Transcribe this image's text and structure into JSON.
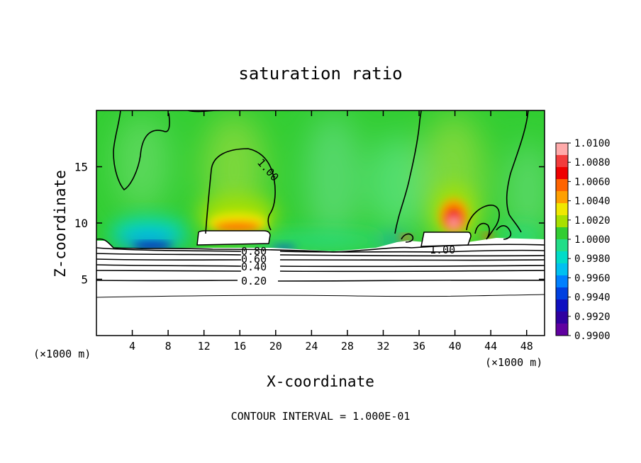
{
  "chart_data": {
    "type": "heatmap",
    "title": "saturation ratio",
    "xlabel": "X-coordinate",
    "ylabel": "Z-coordinate",
    "x_units_left": "(×1000 m)",
    "x_units_right": "(×1000 m)",
    "xlim": [
      0,
      50
    ],
    "ylim": [
      0,
      20
    ],
    "xticks": [
      4,
      8,
      12,
      16,
      20,
      24,
      28,
      32,
      36,
      40,
      44,
      48
    ],
    "yticks": [
      5,
      10,
      15
    ],
    "footer": "CONTOUR INTERVAL = 1.000E-01",
    "colorbar": {
      "ticks": [
        "1.0100",
        "1.0080",
        "1.0060",
        "1.0040",
        "1.0020",
        "1.0000",
        "0.9980",
        "0.9960",
        "0.9940",
        "0.9920",
        "0.9900"
      ],
      "colors": [
        "#ffaaaa",
        "#f23c3c",
        "#ee0000",
        "#ff6400",
        "#ffa000",
        "#f0e800",
        "#a8e000",
        "#32cd32",
        "#22dd88",
        "#00dcc8",
        "#00c0f0",
        "#0080ff",
        "#0040e0",
        "#1010c0",
        "#3000a0",
        "#6000a0"
      ]
    },
    "contour_labels": [
      {
        "text": "1.00",
        "x": 19.0,
        "y": 14.5
      },
      {
        "text": "1.00",
        "x": 38.5,
        "y": 7.7
      },
      {
        "text": "0.80",
        "x": 17.6,
        "y": 7.2
      },
      {
        "text": "0.60",
        "x": 17.6,
        "y": 6.8
      },
      {
        "text": "0.40",
        "x": 17.6,
        "y": 6.1
      },
      {
        "text": "0.20",
        "x": 17.6,
        "y": 4.8
      }
    ],
    "contour_levels": [
      0.2,
      0.4,
      0.6,
      0.8,
      1.0
    ]
  }
}
